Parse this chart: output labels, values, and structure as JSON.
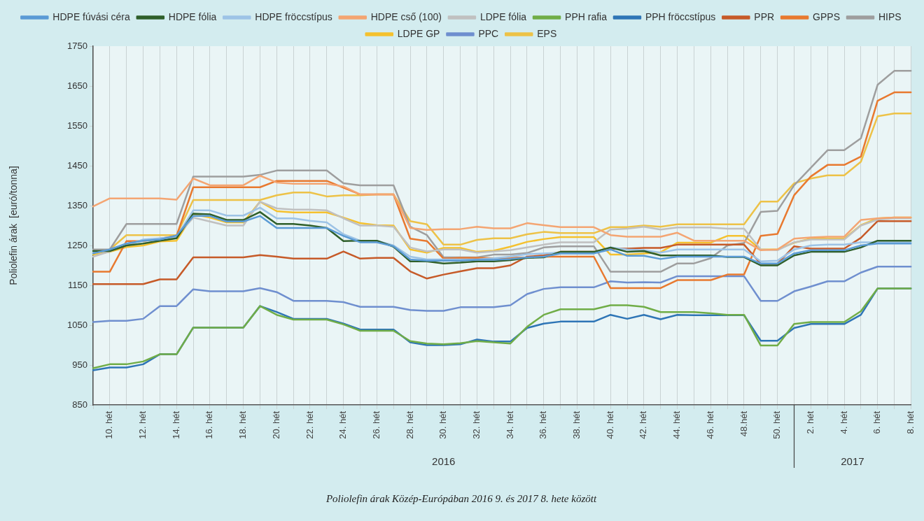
{
  "chart_data": {
    "type": "line",
    "title": "Poliolefin árak Közép-Európában 2016 9. és 2017 8. hete között",
    "ylabel": "Poliolefin árak  [euró/tonna]",
    "categories": [
      null,
      "10. hét",
      null,
      "12. hét",
      null,
      "14. hét",
      null,
      "16. hét",
      null,
      "18. hét",
      null,
      "20. hét",
      null,
      "22. hét",
      null,
      "24. hét",
      null,
      "26. hét",
      null,
      "28. hét",
      null,
      "30. hét",
      null,
      "32. hét",
      null,
      "34. hét",
      null,
      "36. hét",
      null,
      "38. hét",
      null,
      "40. hét",
      null,
      "42. hét",
      null,
      "44. hét",
      null,
      "46. hét",
      null,
      "48.hét",
      null,
      "50. hét",
      null,
      "2. hét",
      null,
      "4. hét",
      null,
      "6. hét",
      null,
      "8. hét"
    ],
    "annotations": [
      "2016",
      "2017"
    ],
    "ylim": [
      850,
      1750
    ],
    "yticks": [
      850,
      950,
      1050,
      1150,
      1250,
      1350,
      1450,
      1550,
      1650,
      1750
    ],
    "grid": "x",
    "legend": "top",
    "marker": "none",
    "line_style": "solid",
    "series": [
      {
        "name": "HDPE fúvási céra",
        "color": "#5b9bd5",
        "values": [
          1230,
          1240,
          1255,
          1262,
          1265,
          1275,
          1324,
          1324,
          1310,
          1310,
          1324,
          1294,
          1294,
          1294,
          1294,
          1274,
          1258,
          1258,
          1248,
          1215,
          1212,
          1212,
          1212,
          1214,
          1214,
          1216,
          1220,
          1222,
          1230,
          1230,
          1230,
          1240,
          1224,
          1224,
          1216,
          1222,
          1222,
          1222,
          1222,
          1222,
          1205,
          1205,
          1230,
          1238,
          1238,
          1238,
          1250,
          1255,
          1255,
          1255
        ]
      },
      {
        "name": "HDPE fólia",
        "color": "#2f5f2a",
        "values": [
          1236,
          1236,
          1250,
          1255,
          1262,
          1268,
          1330,
          1328,
          1314,
          1314,
          1334,
          1304,
          1304,
          1300,
          1294,
          1261,
          1262,
          1262,
          1247,
          1210,
          1210,
          1205,
          1207,
          1210,
          1210,
          1213,
          1219,
          1220,
          1234,
          1234,
          1234,
          1245,
          1234,
          1236,
          1225,
          1225,
          1225,
          1225,
          1221,
          1221,
          1200,
          1200,
          1225,
          1234,
          1234,
          1234,
          1245,
          1262,
          1262,
          1262
        ]
      },
      {
        "name": "HDPE fröccstípus",
        "color": "#9dc3e6",
        "values": [
          1232,
          1238,
          1250,
          1265,
          1268,
          1272,
          1338,
          1338,
          1325,
          1325,
          1345,
          1318,
          1318,
          1312,
          1308,
          1278,
          1262,
          1262,
          1250,
          1222,
          1215,
          1215,
          1215,
          1215,
          1218,
          1222,
          1228,
          1230,
          1232,
          1232,
          1232,
          1245,
          1240,
          1238,
          1232,
          1240,
          1240,
          1240,
          1240,
          1240,
          1210,
          1212,
          1240,
          1250,
          1252,
          1252,
          1258,
          1258,
          1258,
          1258
        ]
      },
      {
        "name": "HDPE cső (100)",
        "color": "#f4a572",
        "values": [
          1348,
          1368,
          1368,
          1368,
          1368,
          1365,
          1418,
          1401,
          1401,
          1401,
          1425,
          1408,
          1405,
          1405,
          1405,
          1398,
          1378,
          1378,
          1378,
          1294,
          1289,
          1291,
          1291,
          1297,
          1293,
          1293,
          1306,
          1301,
          1296,
          1296,
          1296,
          1276,
          1272,
          1272,
          1272,
          1282,
          1262,
          1262,
          1262,
          1262,
          1238,
          1240,
          1267,
          1270,
          1272,
          1272,
          1314,
          1318,
          1320,
          1320
        ]
      },
      {
        "name": "LDPE fólia",
        "color": "#c0c0c0",
        "values": [
          1222,
          1235,
          1255,
          1262,
          1268,
          1272,
          1320,
          1310,
          1300,
          1300,
          1360,
          1343,
          1340,
          1340,
          1338,
          1318,
          1300,
          1300,
          1297,
          1245,
          1235,
          1240,
          1240,
          1232,
          1235,
          1238,
          1245,
          1252,
          1258,
          1258,
          1258,
          1290,
          1292,
          1297,
          1290,
          1295,
          1295,
          1295,
          1292,
          1292,
          1240,
          1238,
          1258,
          1265,
          1265,
          1265,
          1300,
          1315,
          1318,
          1318
        ]
      },
      {
        "name": "PPH rafia",
        "color": "#70ad47",
        "values": [
          942,
          952,
          952,
          959,
          977,
          977,
          1044,
          1044,
          1044,
          1044,
          1098,
          1076,
          1064,
          1064,
          1064,
          1052,
          1036,
          1036,
          1036,
          1010,
          1004,
          1002,
          1005,
          1010,
          1007,
          1004,
          1046,
          1076,
          1090,
          1090,
          1090,
          1100,
          1100,
          1096,
          1083,
          1083,
          1083,
          1080,
          1076,
          1076,
          999,
          999,
          1053,
          1058,
          1058,
          1058,
          1085,
          1142,
          1142,
          1142
        ]
      },
      {
        "name": "PPH fröccstípus",
        "color": "#2e75b6",
        "values": [
          937,
          944,
          944,
          952,
          977,
          977,
          1044,
          1044,
          1044,
          1044,
          1098,
          1083,
          1066,
          1066,
          1066,
          1054,
          1039,
          1039,
          1039,
          1007,
          1000,
          1000,
          1002,
          1014,
          1009,
          1009,
          1043,
          1054,
          1059,
          1059,
          1059,
          1076,
          1066,
          1076,
          1065,
          1076,
          1075,
          1075,
          1075,
          1075,
          1011,
          1011,
          1043,
          1053,
          1053,
          1053,
          1076,
          1142,
          1142,
          1142
        ]
      },
      {
        "name": "PPR",
        "color": "#c65a28",
        "values": [
          1153,
          1153,
          1153,
          1153,
          1165,
          1165,
          1220,
          1220,
          1220,
          1220,
          1226,
          1222,
          1217,
          1217,
          1217,
          1235,
          1217,
          1219,
          1219,
          1185,
          1167,
          1177,
          1185,
          1193,
          1193,
          1200,
          1222,
          1225,
          1234,
          1234,
          1234,
          1242,
          1242,
          1244,
          1244,
          1252,
          1252,
          1252,
          1252,
          1252,
          1204,
          1204,
          1248,
          1242,
          1242,
          1242,
          1269,
          1311,
          1311,
          1311
        ]
      },
      {
        "name": "GPPS",
        "color": "#e8792f",
        "values": [
          1184,
          1184,
          1261,
          1261,
          1267,
          1274,
          1396,
          1396,
          1396,
          1396,
          1396,
          1412,
          1412,
          1412,
          1412,
          1395,
          1378,
          1378,
          1378,
          1267,
          1261,
          1217,
          1219,
          1219,
          1218,
          1219,
          1220,
          1222,
          1222,
          1222,
          1222,
          1143,
          1143,
          1143,
          1143,
          1163,
          1163,
          1163,
          1177,
          1177,
          1274,
          1279,
          1376,
          1423,
          1452,
          1452,
          1473,
          1613,
          1634,
          1634
        ]
      },
      {
        "name": "HIPS",
        "color": "#9e9e9e",
        "values": [
          1240,
          1240,
          1304,
          1304,
          1304,
          1304,
          1423,
          1423,
          1423,
          1423,
          1427,
          1438,
          1438,
          1438,
          1438,
          1406,
          1401,
          1401,
          1401,
          1297,
          1276,
          1220,
          1220,
          1220,
          1227,
          1227,
          1231,
          1245,
          1248,
          1248,
          1248,
          1184,
          1184,
          1184,
          1184,
          1205,
          1205,
          1218,
          1250,
          1256,
          1334,
          1337,
          1401,
          1445,
          1489,
          1489,
          1519,
          1653,
          1688,
          1688
        ]
      },
      {
        "name": "LDPE GP",
        "color": "#f5c12e",
        "values": [
          1227,
          1234,
          1246,
          1250,
          1260,
          1262,
          1328,
          1320,
          1308,
          1308,
          1360,
          1336,
          1333,
          1333,
          1333,
          1320,
          1306,
          1301,
          1300,
          1240,
          1232,
          1244,
          1244,
          1234,
          1237,
          1247,
          1259,
          1266,
          1271,
          1271,
          1271,
          1227,
          1227,
          1230,
          1233,
          1257,
          1257,
          1257,
          1274,
          1274,
          1240,
          1240,
          1257,
          1267,
          1267,
          1267,
          1301,
          1318,
          1320,
          1320
        ]
      },
      {
        "name": "PPC",
        "color": "#6f8fcf",
        "values": [
          1058,
          1061,
          1061,
          1066,
          1098,
          1098,
          1140,
          1135,
          1135,
          1135,
          1143,
          1133,
          1111,
          1111,
          1111,
          1108,
          1096,
          1096,
          1096,
          1088,
          1086,
          1086,
          1095,
          1095,
          1095,
          1100,
          1128,
          1141,
          1145,
          1145,
          1145,
          1160,
          1157,
          1158,
          1157,
          1173,
          1173,
          1173,
          1173,
          1173,
          1111,
          1111,
          1135,
          1147,
          1160,
          1160,
          1182,
          1197,
          1197,
          1197
        ]
      },
      {
        "name": "EPS",
        "color": "#edc247",
        "values": [
          1232,
          1240,
          1276,
          1276,
          1276,
          1276,
          1364,
          1364,
          1364,
          1364,
          1364,
          1376,
          1383,
          1383,
          1373,
          1376,
          1376,
          1378,
          1378,
          1311,
          1303,
          1252,
          1252,
          1264,
          1268,
          1268,
          1278,
          1284,
          1281,
          1281,
          1281,
          1296,
          1296,
          1300,
          1297,
          1303,
          1303,
          1303,
          1303,
          1303,
          1360,
          1360,
          1406,
          1418,
          1426,
          1426,
          1460,
          1574,
          1581,
          1581
        ]
      }
    ]
  }
}
